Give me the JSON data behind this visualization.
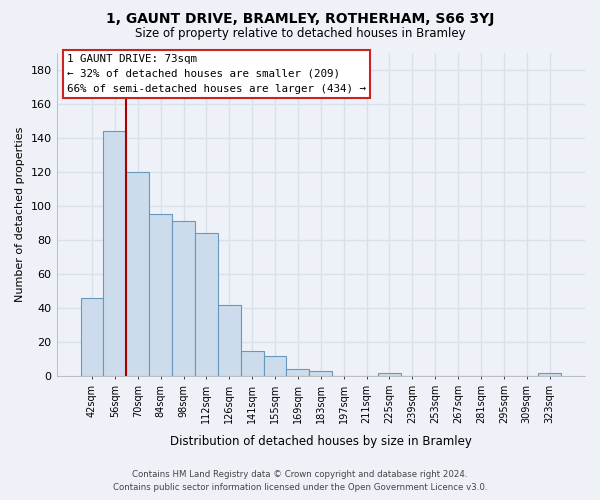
{
  "title": "1, GAUNT DRIVE, BRAMLEY, ROTHERHAM, S66 3YJ",
  "subtitle": "Size of property relative to detached houses in Bramley",
  "xlabel": "Distribution of detached houses by size in Bramley",
  "ylabel": "Number of detached properties",
  "bar_color": "#ccdcec",
  "bar_edge_color": "#6699bb",
  "categories": [
    "42sqm",
    "56sqm",
    "70sqm",
    "84sqm",
    "98sqm",
    "112sqm",
    "126sqm",
    "141sqm",
    "155sqm",
    "169sqm",
    "183sqm",
    "197sqm",
    "211sqm",
    "225sqm",
    "239sqm",
    "253sqm",
    "267sqm",
    "281sqm",
    "295sqm",
    "309sqm",
    "323sqm"
  ],
  "values": [
    46,
    144,
    120,
    95,
    91,
    84,
    42,
    15,
    12,
    4,
    3,
    0,
    0,
    2,
    0,
    0,
    0,
    0,
    0,
    0,
    2
  ],
  "ylim": [
    0,
    190
  ],
  "yticks": [
    0,
    20,
    40,
    60,
    80,
    100,
    120,
    140,
    160,
    180
  ],
  "property_line_color": "#aa0000",
  "annotation_text": "1 GAUNT DRIVE: 73sqm\n← 32% of detached houses are smaller (209)\n66% of semi-detached houses are larger (434) →",
  "footer_line1": "Contains HM Land Registry data © Crown copyright and database right 2024.",
  "footer_line2": "Contains public sector information licensed under the Open Government Licence v3.0.",
  "background_color": "#eef2f8",
  "grid_color": "#d8e0ec"
}
